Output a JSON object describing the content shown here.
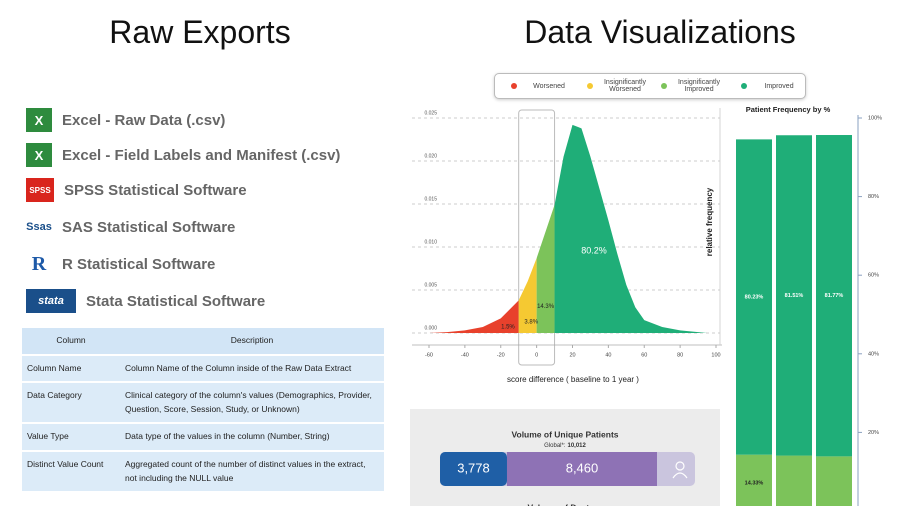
{
  "left": {
    "title": "Raw Exports",
    "exports": [
      {
        "icon": "X",
        "label": "Excel - Raw Data (.csv)"
      },
      {
        "icon": "X",
        "label": "Excel - Field Labels and Manifest (.csv)"
      },
      {
        "icon": "SPSS",
        "label": "SPSS Statistical Software"
      },
      {
        "icon": "Ssas",
        "label": "SAS Statistical Software"
      },
      {
        "icon": "R",
        "label": "R Statistical Software"
      },
      {
        "icon": "stata",
        "label": "Stata Statistical Software"
      }
    ],
    "table": {
      "header": [
        "Column",
        "Description"
      ],
      "rows": [
        [
          "Column Name",
          "Column Name of the Column inside of the Raw Data Extract"
        ],
        [
          "Data Category",
          "Clinical category of the column's values (Demographics, Provider, Question, Score, Session, Study, or Unknown)"
        ],
        [
          "Value Type",
          "Data type of the values in the column (Number, String)"
        ],
        [
          "Distinct Value Count",
          "Aggregated count of the number of distinct values in the extract, not including the NULL value"
        ]
      ]
    }
  },
  "right": {
    "title": "Data Visualizations"
  },
  "chart_data": [
    {
      "type": "area",
      "legend": [
        {
          "name": "Worsened",
          "color": "#e8412c"
        },
        {
          "name": "Insignificantly Worsened",
          "color": "#f5c932"
        },
        {
          "name": "Insignificantly Improved",
          "color": "#7cc35a"
        },
        {
          "name": "Improved",
          "color": "#1fae78"
        }
      ],
      "zone_edges": [
        -10,
        0,
        10
      ],
      "zone_labels": [
        "1.5%",
        "3.8%",
        "14.3%",
        "80.2%"
      ],
      "x": [
        -60,
        -50,
        -40,
        -30,
        -20,
        -10,
        -5,
        0,
        5,
        10,
        15,
        20,
        25,
        30,
        35,
        40,
        45,
        50,
        55,
        60,
        70,
        80,
        90,
        95
      ],
      "values": [
        0,
        0.0001,
        0.0003,
        0.0007,
        0.0017,
        0.0038,
        0.006,
        0.0087,
        0.0118,
        0.0149,
        0.0205,
        0.0242,
        0.0238,
        0.0205,
        0.0168,
        0.0131,
        0.0092,
        0.0056,
        0.003,
        0.0015,
        0.0007,
        0.0003,
        0.0001,
        0
      ],
      "xlim": [
        -60,
        100
      ],
      "xticks": [
        -60,
        -40,
        -20,
        0,
        20,
        40,
        60,
        80,
        100
      ],
      "ylim": [
        0,
        0.025
      ],
      "yticks": [
        {
          "value": 0,
          "label": "0.000"
        },
        0.005,
        {
          "value": 0.01,
          "label": "0.010"
        },
        0.015,
        {
          "value": 0.02,
          "label": "0.020"
        },
        0.025
      ],
      "x_label": "score difference ( baseline to 1 year )",
      "y_label": "relative frequency",
      "grid": true
    },
    {
      "type": "stacked-bar",
      "title": "Patient Frequency by %",
      "series": [
        {
          "name": "Insignificantly Improved",
          "color": "#7cc35a",
          "values": [
            14.33,
            14.1,
            13.9
          ],
          "value_labels": [
            "14.33%",
            null,
            null
          ]
        },
        {
          "name": "Improved",
          "color": "#1fae78",
          "values": [
            80.23,
            81.51,
            81.77
          ],
          "value_labels": [
            "80.23%",
            "81.51%",
            "81.77%"
          ]
        }
      ],
      "ylim": [
        0,
        100
      ],
      "yticks": [
        {
          "value": 20,
          "label": "20%"
        },
        {
          "value": 40,
          "label": "40%"
        },
        {
          "value": 60,
          "label": "60%"
        },
        {
          "value": 80,
          "label": "80%"
        },
        {
          "value": 100,
          "label": "100%"
        }
      ]
    },
    {
      "type": "volume-bar",
      "title": "Volume of Unique Patients",
      "global_label": "Global*:",
      "global_value": 10012,
      "global_value_label": "10,012",
      "values": [
        3778,
        8460
      ],
      "value_labels": [
        "3,778",
        "8,460"
      ],
      "colors": [
        "#1f5fa6",
        "#8e72b5"
      ],
      "next_title": "Volume of Doctors"
    }
  ]
}
